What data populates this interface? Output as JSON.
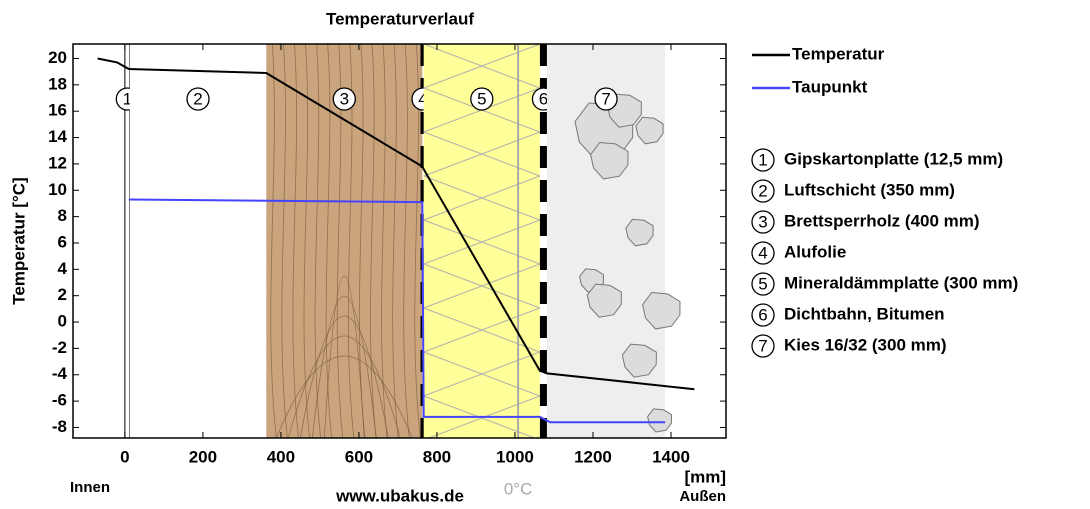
{
  "chart_data": {
    "type": "line",
    "title": "Temperaturverlauf",
    "y_label": "Temperatur [°C]",
    "x_unit": "[mm]",
    "inside_label": "Innen",
    "outside_label": "Außen",
    "source": "www.ubakus.de",
    "zero_label": "0°C",
    "zero_x": 1008,
    "zero_color": "#aaaaaa",
    "xlim": [
      -133,
      1541
    ],
    "ylim": [
      -8.8,
      21.1
    ],
    "xticks": [
      0,
      200,
      400,
      600,
      800,
      1000,
      1200,
      1400
    ],
    "yticks": [
      -8,
      -6,
      -4,
      -2,
      0,
      2,
      4,
      6,
      8,
      10,
      12,
      14,
      16,
      18,
      20
    ],
    "layers": [
      {
        "number": "1",
        "name": "Gipskartonplatte (12,5 mm)",
        "start": 0,
        "end": 12.5,
        "color": "#ffffff"
      },
      {
        "number": "2",
        "name": "Luftschicht (350 mm)",
        "start": 12.5,
        "end": 362.5,
        "color": "#ffffff"
      },
      {
        "number": "3",
        "name": "Brettsperrholz (400 mm)",
        "start": 362.5,
        "end": 762.5,
        "color": "#c9a47c"
      },
      {
        "number": "4",
        "name": "Alufolie",
        "start": 762.5,
        "end": 766,
        "color": "#000000"
      },
      {
        "number": "5",
        "name": "Mineraldämmplatte (300 mm)",
        "start": 766,
        "end": 1064,
        "color": "#ffff99"
      },
      {
        "number": "6",
        "name": "Dichtbahn, Bitumen",
        "start": 1064,
        "end": 1082,
        "color": "#000000"
      },
      {
        "number": "7",
        "name": "Kies 16/32 (300 mm)",
        "start": 1082,
        "end": 1385,
        "color": "#eeeeee"
      }
    ],
    "series": [
      {
        "name": "Temperatur",
        "color": "#000000",
        "x": [
          -70,
          -20,
          10,
          362.5,
          762.5,
          766,
          1064,
          1082,
          1460
        ],
        "values": [
          20,
          19.7,
          19.2,
          18.9,
          11.8,
          11.6,
          -3.7,
          -3.9,
          -5.1
        ]
      },
      {
        "name": "Taupunkt",
        "color": "#4444ff",
        "x": [
          10,
          762.5,
          766,
          1064,
          1090,
          1385
        ],
        "values": [
          9.3,
          9.1,
          -7.2,
          -7.2,
          -7.6,
          -7.6
        ]
      }
    ]
  }
}
